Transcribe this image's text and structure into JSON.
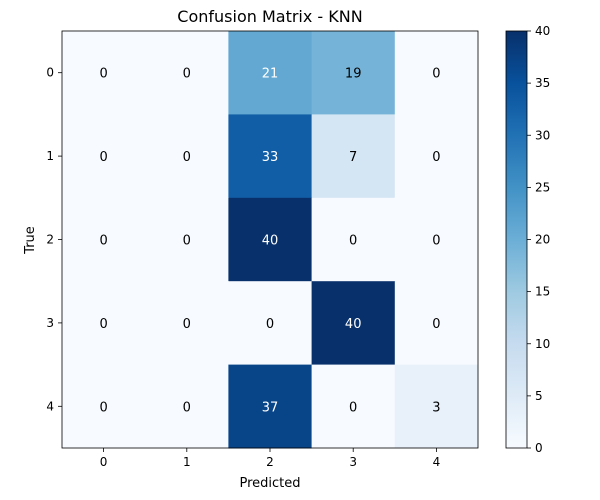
{
  "chart_data": {
    "type": "heatmap",
    "title": "Confusion Matrix - KNN",
    "xlabel": "Predicted",
    "ylabel": "True",
    "x_categories": [
      "0",
      "1",
      "2",
      "3",
      "4"
    ],
    "y_categories": [
      "0",
      "1",
      "2",
      "3",
      "4"
    ],
    "values": [
      [
        0,
        0,
        21,
        19,
        0
      ],
      [
        0,
        0,
        33,
        7,
        0
      ],
      [
        0,
        0,
        40,
        0,
        0
      ],
      [
        0,
        0,
        0,
        40,
        0
      ],
      [
        0,
        0,
        37,
        0,
        3
      ]
    ],
    "colorbar": {
      "min": 0,
      "max": 40,
      "ticks": [
        "0",
        "5",
        "10",
        "15",
        "20",
        "25",
        "30",
        "35",
        "40"
      ],
      "colormap": "Blues"
    }
  }
}
